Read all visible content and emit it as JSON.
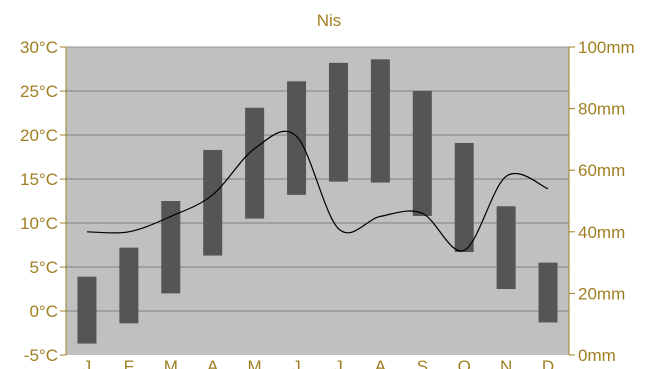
{
  "chart_data": {
    "type": "bar",
    "title": "Nis",
    "categories": [
      "J",
      "F",
      "M",
      "A",
      "M",
      "J",
      "J",
      "A",
      "S",
      "O",
      "N",
      "D"
    ],
    "series": [
      {
        "kind": "temperature-range",
        "low": [
          -3.7,
          -1.4,
          2.0,
          6.3,
          10.5,
          13.2,
          14.7,
          14.6,
          10.8,
          6.7,
          2.5,
          -1.3
        ],
        "high": [
          3.9,
          7.2,
          12.5,
          18.3,
          23.1,
          26.1,
          28.2,
          28.6,
          25.0,
          19.1,
          11.9,
          5.5
        ]
      },
      {
        "kind": "precipitation",
        "values": [
          40,
          40,
          45,
          52,
          67,
          71,
          41,
          45,
          46,
          34,
          58,
          54
        ]
      }
    ],
    "y_left": {
      "ticks": [
        "-5°C",
        "0°C",
        "5°C",
        "10°C",
        "15°C",
        "20°C",
        "25°C",
        "30°C"
      ],
      "ylim": [
        -5,
        30
      ]
    },
    "y_right": {
      "ticks": [
        "0mm",
        "20mm",
        "40mm",
        "60mm",
        "80mm",
        "100mm"
      ],
      "ylim": [
        0,
        100
      ]
    },
    "grid": true,
    "colors": {
      "plot_bg": "#c0c0c0",
      "bar": "#555555",
      "line": "#000000",
      "text": "#a07f22",
      "grid": "#808080"
    }
  }
}
